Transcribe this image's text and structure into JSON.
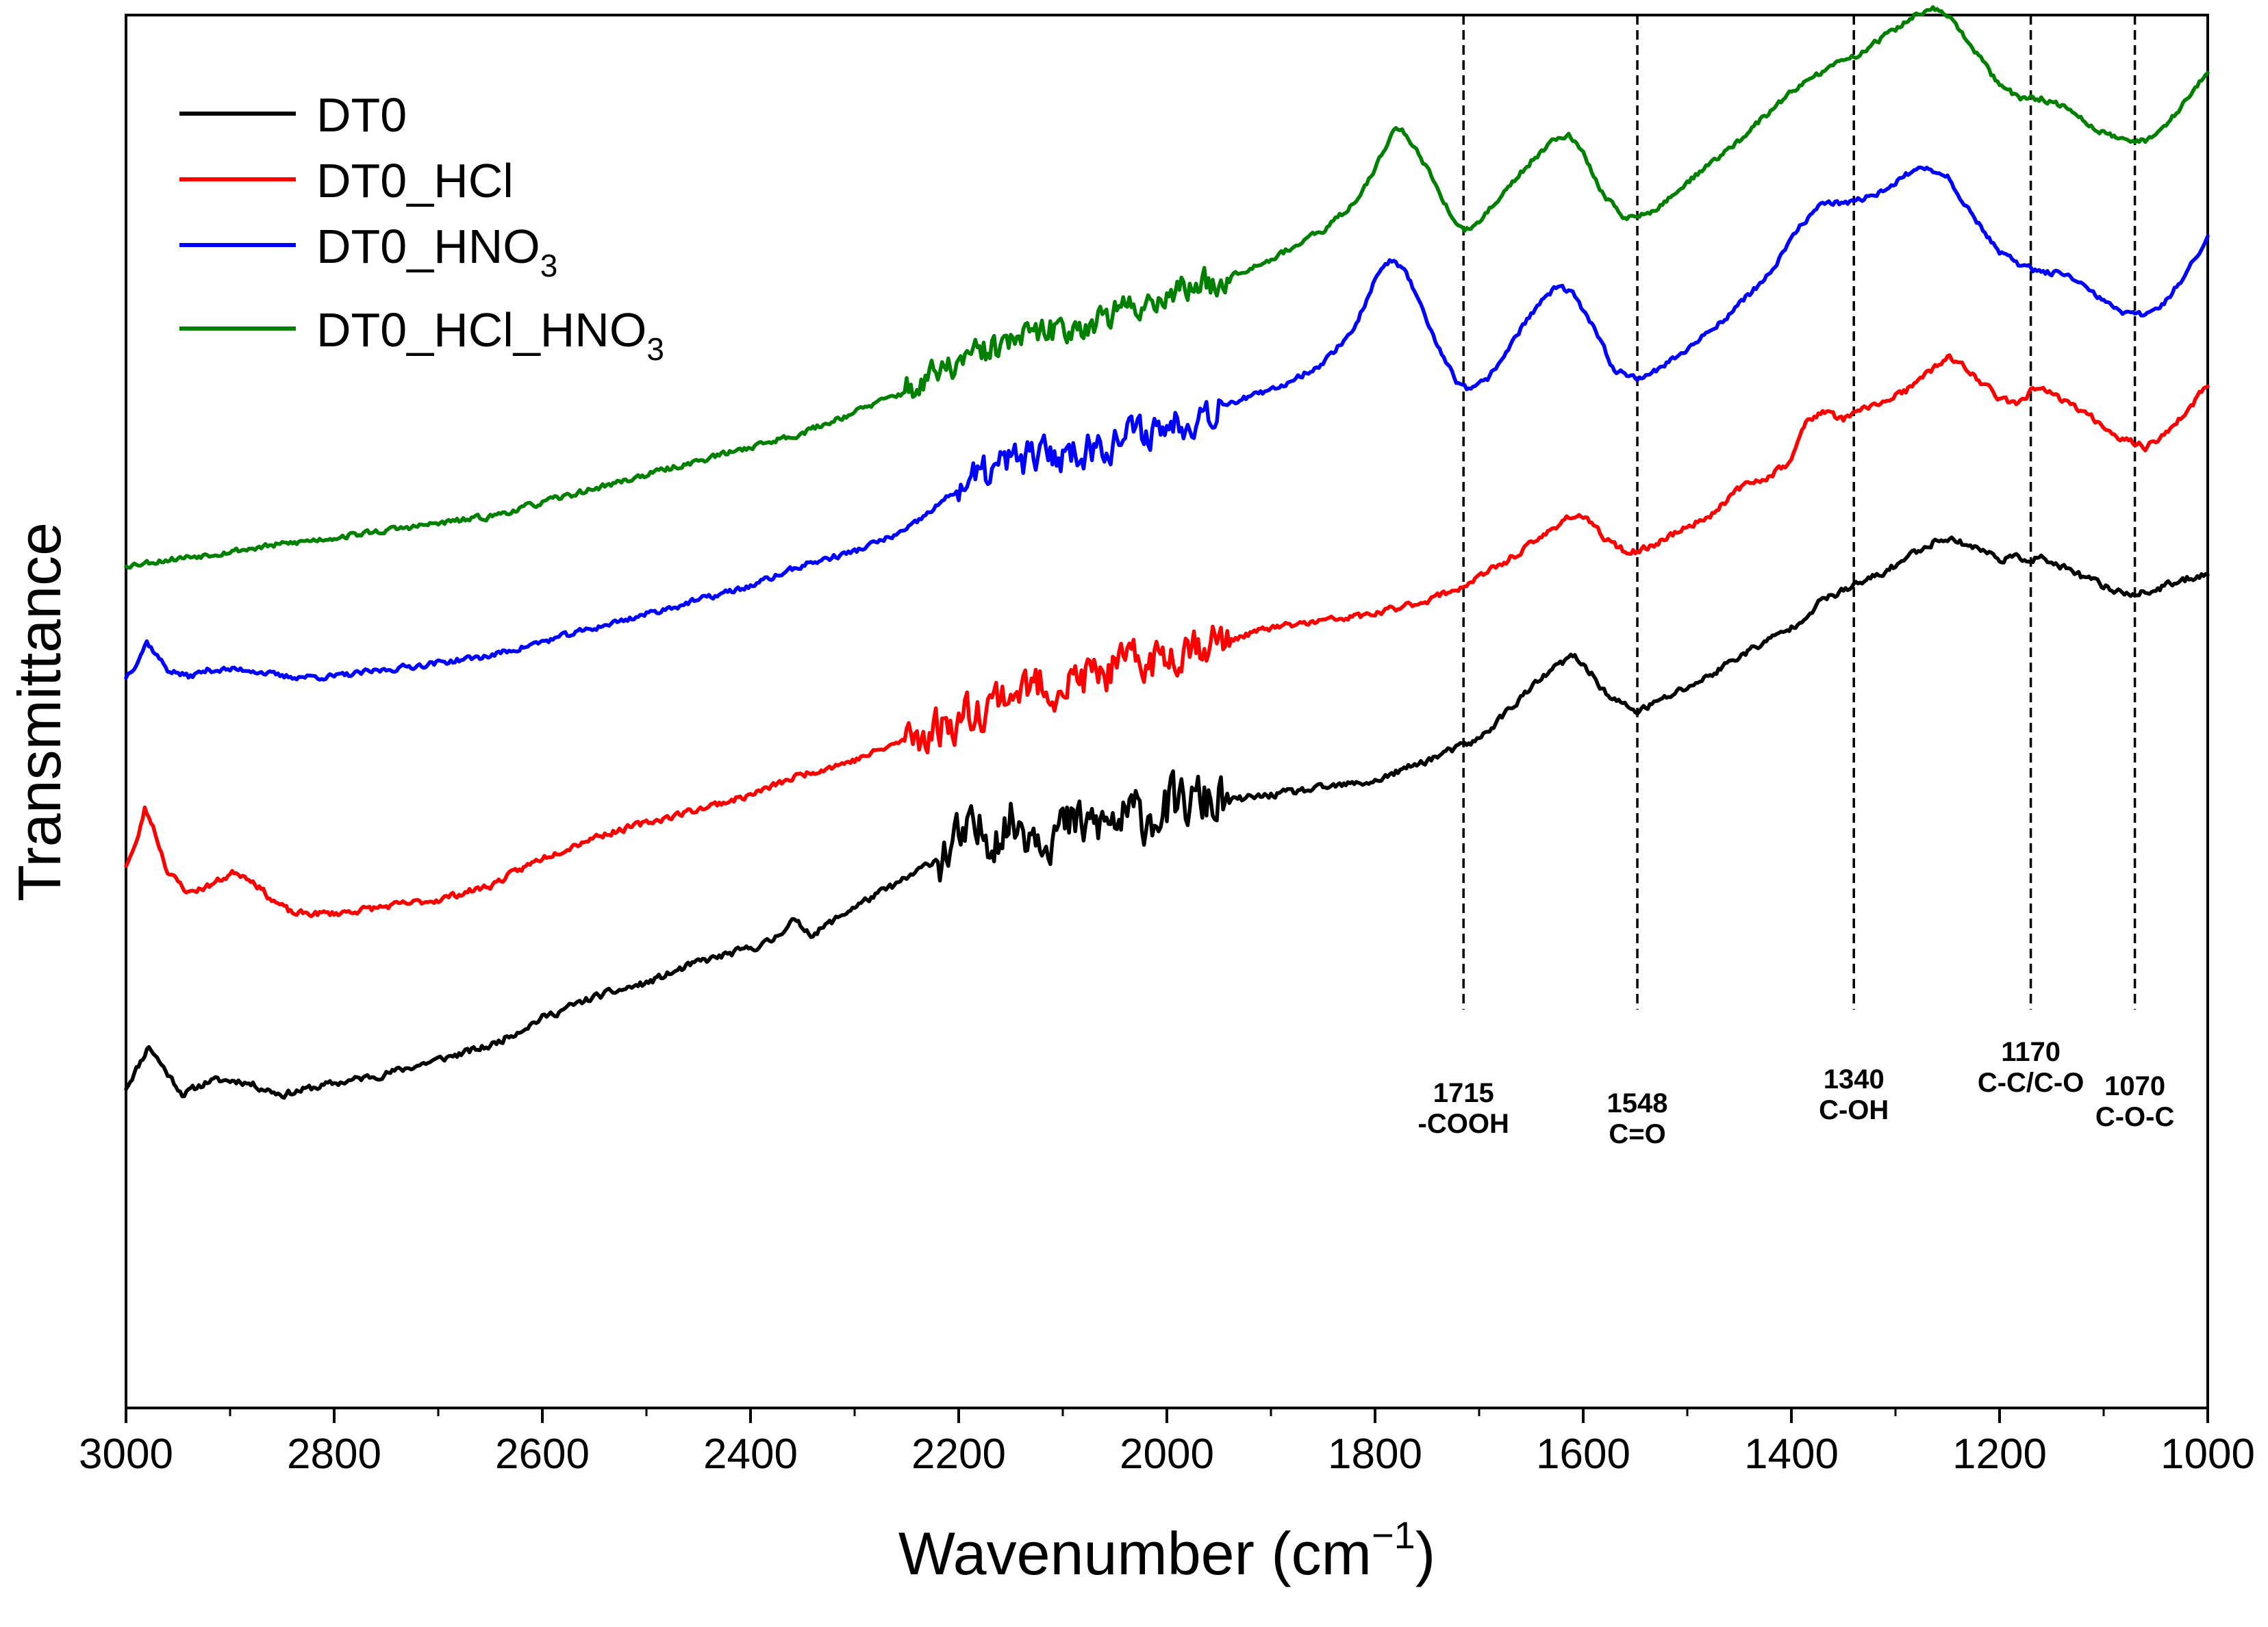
{
  "chart_data": {
    "type": "line",
    "title": "",
    "xlabel": "Wavenumber (cm",
    "xlabel_sup": "−1",
    "xlabel_close": ")",
    "ylabel": "Transmittance",
    "xlim": [
      3000,
      1000
    ],
    "x_reversed": true,
    "ylim": [
      0,
      100
    ],
    "y_ticks_shown": false,
    "grid": false,
    "legend_position": "top-left",
    "x_ticks": [
      3000,
      2800,
      2600,
      2400,
      2200,
      2000,
      1800,
      1600,
      1400,
      1200,
      1000
    ],
    "x_tick_labels": [
      "3000",
      "2800",
      "2600",
      "2400",
      "2200",
      "2000",
      "1800",
      "1600",
      "1400",
      "1200",
      "1000"
    ],
    "x_minor_ticks": [
      2900,
      2700,
      2500,
      2300,
      2100,
      1900,
      1700,
      1500,
      1300,
      1100
    ],
    "series": [
      {
        "name": "DT0",
        "legend_base": "DT0",
        "legend_sub": "",
        "legend_suffix": "",
        "color": "#000000",
        "noise": 2.2,
        "noise_seed": 11,
        "points": [
          [
            3000,
            23
          ],
          [
            2985,
            25
          ],
          [
            2978,
            26
          ],
          [
            2960,
            24
          ],
          [
            2945,
            22.5
          ],
          [
            2920,
            23.5
          ],
          [
            2890,
            23.5
          ],
          [
            2850,
            22.5
          ],
          [
            2820,
            23
          ],
          [
            2750,
            24
          ],
          [
            2700,
            25
          ],
          [
            2650,
            26
          ],
          [
            2600,
            28
          ],
          [
            2550,
            29.5
          ],
          [
            2500,
            30.5
          ],
          [
            2450,
            32
          ],
          [
            2400,
            33
          ],
          [
            2380,
            33.5
          ],
          [
            2360,
            35
          ],
          [
            2340,
            34
          ],
          [
            2300,
            36
          ],
          [
            2250,
            38
          ],
          [
            2200,
            40.5
          ],
          [
            2150,
            42
          ],
          [
            2100,
            41.5
          ],
          [
            2050,
            42
          ],
          [
            2000,
            43
          ],
          [
            1970,
            43.5
          ],
          [
            1950,
            43.5
          ],
          [
            1900,
            44
          ],
          [
            1850,
            44.5
          ],
          [
            1800,
            45
          ],
          [
            1750,
            46.5
          ],
          [
            1700,
            48
          ],
          [
            1660,
            51
          ],
          [
            1630,
            53
          ],
          [
            1610,
            54
          ],
          [
            1595,
            53
          ],
          [
            1575,
            51
          ],
          [
            1548,
            50
          ],
          [
            1520,
            51
          ],
          [
            1480,
            52.5
          ],
          [
            1450,
            54
          ],
          [
            1400,
            56
          ],
          [
            1370,
            58
          ],
          [
            1340,
            59
          ],
          [
            1310,
            60
          ],
          [
            1280,
            61.5
          ],
          [
            1255,
            62.5
          ],
          [
            1230,
            62
          ],
          [
            1200,
            61
          ],
          [
            1180,
            61
          ],
          [
            1160,
            61
          ],
          [
            1130,
            60
          ],
          [
            1100,
            59
          ],
          [
            1080,
            58.5
          ],
          [
            1060,
            58.5
          ],
          [
            1040,
            59
          ],
          [
            1020,
            59.5
          ],
          [
            1000,
            60
          ]
        ],
        "noise_zones": [
          [
            2220,
            1940,
            9
          ]
        ]
      },
      {
        "name": "DT0_HCl",
        "legend_base": "DT0_HCl",
        "legend_sub": "",
        "legend_suffix": "",
        "color": "#ff0000",
        "noise": 2.0,
        "noise_seed": 23,
        "points": [
          [
            3000,
            39
          ],
          [
            2990,
            40.5
          ],
          [
            2982,
            43
          ],
          [
            2975,
            42
          ],
          [
            2960,
            38.5
          ],
          [
            2940,
            37
          ],
          [
            2920,
            37.5
          ],
          [
            2895,
            38.5
          ],
          [
            2880,
            38
          ],
          [
            2860,
            36.5
          ],
          [
            2840,
            35.5
          ],
          [
            2800,
            35.5
          ],
          [
            2750,
            36
          ],
          [
            2700,
            36.5
          ],
          [
            2650,
            37.5
          ],
          [
            2600,
            39.5
          ],
          [
            2550,
            41
          ],
          [
            2500,
            42
          ],
          [
            2450,
            43
          ],
          [
            2400,
            44
          ],
          [
            2350,
            45.5
          ],
          [
            2300,
            46.5
          ],
          [
            2250,
            48
          ],
          [
            2200,
            49.5
          ],
          [
            2150,
            51.5
          ],
          [
            2100,
            52
          ],
          [
            2050,
            53
          ],
          [
            2000,
            54
          ],
          [
            1980,
            55
          ],
          [
            1950,
            55
          ],
          [
            1900,
            56
          ],
          [
            1850,
            56.5
          ],
          [
            1800,
            57
          ],
          [
            1750,
            58
          ],
          [
            1715,
            59
          ],
          [
            1680,
            60.5
          ],
          [
            1640,
            62.5
          ],
          [
            1615,
            64
          ],
          [
            1600,
            64
          ],
          [
            1580,
            62.5
          ],
          [
            1560,
            61.5
          ],
          [
            1545,
            61.5
          ],
          [
            1520,
            62.5
          ],
          [
            1480,
            64
          ],
          [
            1450,
            66
          ],
          [
            1420,
            67
          ],
          [
            1400,
            68
          ],
          [
            1385,
            71
          ],
          [
            1370,
            71.5
          ],
          [
            1350,
            71
          ],
          [
            1320,
            72
          ],
          [
            1290,
            73
          ],
          [
            1265,
            74.5
          ],
          [
            1250,
            75.5
          ],
          [
            1230,
            74.5
          ],
          [
            1200,
            72.5
          ],
          [
            1185,
            72
          ],
          [
            1170,
            73
          ],
          [
            1155,
            73
          ],
          [
            1130,
            72
          ],
          [
            1100,
            70.5
          ],
          [
            1080,
            69.5
          ],
          [
            1060,
            69
          ],
          [
            1040,
            70
          ],
          [
            1020,
            71.5
          ],
          [
            1000,
            73.5
          ]
        ],
        "noise_zones": [
          [
            2250,
            1940,
            7
          ]
        ]
      },
      {
        "name": "DT0_HNO3",
        "legend_base": "DT0_HNO",
        "legend_sub": "3",
        "legend_suffix": "",
        "color": "#0000ff",
        "noise": 1.8,
        "noise_seed": 37,
        "points": [
          [
            3000,
            52.5
          ],
          [
            2990,
            53.5
          ],
          [
            2980,
            55
          ],
          [
            2970,
            54
          ],
          [
            2960,
            53
          ],
          [
            2940,
            52.5
          ],
          [
            2920,
            53
          ],
          [
            2880,
            53
          ],
          [
            2850,
            52.5
          ],
          [
            2800,
            52.5
          ],
          [
            2750,
            53
          ],
          [
            2700,
            53.5
          ],
          [
            2650,
            54
          ],
          [
            2600,
            55
          ],
          [
            2550,
            56
          ],
          [
            2500,
            57
          ],
          [
            2450,
            58
          ],
          [
            2400,
            59
          ],
          [
            2350,
            60.5
          ],
          [
            2300,
            61.5
          ],
          [
            2250,
            63
          ],
          [
            2200,
            66
          ],
          [
            2150,
            68
          ],
          [
            2100,
            68.5
          ],
          [
            2050,
            69.5
          ],
          [
            2000,
            70.5
          ],
          [
            1950,
            72
          ],
          [
            1900,
            73
          ],
          [
            1850,
            75
          ],
          [
            1820,
            77.5
          ],
          [
            1800,
            81
          ],
          [
            1785,
            82.5
          ],
          [
            1770,
            81.5
          ],
          [
            1745,
            77
          ],
          [
            1720,
            73.5
          ],
          [
            1708,
            73
          ],
          [
            1690,
            74
          ],
          [
            1660,
            77.5
          ],
          [
            1640,
            79.5
          ],
          [
            1625,
            80.5
          ],
          [
            1610,
            80
          ],
          [
            1590,
            77.5
          ],
          [
            1570,
            74.5
          ],
          [
            1548,
            74
          ],
          [
            1530,
            74.5
          ],
          [
            1500,
            76
          ],
          [
            1460,
            78.5
          ],
          [
            1420,
            81.5
          ],
          [
            1390,
            85
          ],
          [
            1370,
            86.5
          ],
          [
            1340,
            86.5
          ],
          [
            1310,
            87.5
          ],
          [
            1290,
            88.5
          ],
          [
            1270,
            89
          ],
          [
            1250,
            88.5
          ],
          [
            1230,
            86
          ],
          [
            1200,
            83
          ],
          [
            1180,
            82
          ],
          [
            1160,
            81.5
          ],
          [
            1140,
            81.5
          ],
          [
            1120,
            80.5
          ],
          [
            1100,
            79.5
          ],
          [
            1080,
            78.5
          ],
          [
            1060,
            78.5
          ],
          [
            1040,
            79.5
          ],
          [
            1020,
            81.5
          ],
          [
            1000,
            84
          ]
        ],
        "noise_zones": [
          [
            2200,
            1950,
            6
          ]
        ]
      },
      {
        "name": "DT0_HCl_HNO3",
        "legend_base": "DT0_HCl_HNO",
        "legend_sub": "3",
        "legend_suffix": "",
        "color": "#008000",
        "noise": 1.8,
        "noise_seed": 53,
        "points": [
          [
            3000,
            60.5
          ],
          [
            2950,
            61
          ],
          [
            2900,
            61.5
          ],
          [
            2850,
            62
          ],
          [
            2800,
            62.5
          ],
          [
            2750,
            63
          ],
          [
            2700,
            63.5
          ],
          [
            2650,
            64
          ],
          [
            2600,
            65
          ],
          [
            2550,
            66
          ],
          [
            2500,
            67
          ],
          [
            2450,
            68
          ],
          [
            2400,
            69
          ],
          [
            2350,
            70
          ],
          [
            2300,
            71.5
          ],
          [
            2250,
            73
          ],
          [
            2200,
            75
          ],
          [
            2150,
            76.5
          ],
          [
            2100,
            77.5
          ],
          [
            2050,
            78.5
          ],
          [
            2000,
            80
          ],
          [
            1950,
            81
          ],
          [
            1900,
            82.5
          ],
          [
            1850,
            84.5
          ],
          [
            1820,
            86.5
          ],
          [
            1800,
            89
          ],
          [
            1780,
            92
          ],
          [
            1770,
            91.5
          ],
          [
            1750,
            89
          ],
          [
            1730,
            86
          ],
          [
            1715,
            84.5
          ],
          [
            1700,
            85
          ],
          [
            1680,
            87
          ],
          [
            1650,
            89.5
          ],
          [
            1630,
            91
          ],
          [
            1615,
            91.5
          ],
          [
            1600,
            90
          ],
          [
            1580,
            87
          ],
          [
            1560,
            85.5
          ],
          [
            1548,
            85.5
          ],
          [
            1530,
            86
          ],
          [
            1500,
            88
          ],
          [
            1450,
            91
          ],
          [
            1400,
            94.5
          ],
          [
            1370,
            96
          ],
          [
            1340,
            97
          ],
          [
            1300,
            99
          ],
          [
            1280,
            100
          ],
          [
            1265,
            100.5
          ],
          [
            1250,
            100
          ],
          [
            1230,
            98
          ],
          [
            1200,
            95
          ],
          [
            1180,
            94
          ],
          [
            1160,
            94
          ],
          [
            1140,
            93.5
          ],
          [
            1120,
            92.5
          ],
          [
            1100,
            91.5
          ],
          [
            1080,
            91
          ],
          [
            1060,
            91
          ],
          [
            1040,
            92
          ],
          [
            1020,
            94
          ],
          [
            1000,
            96
          ]
        ],
        "noise_zones": [
          [
            2250,
            1940,
            5
          ]
        ]
      }
    ],
    "reference_lines": [
      {
        "x": 1715,
        "value": "1715",
        "group": "-COOH"
      },
      {
        "x": 1548,
        "value": "1548",
        "group": "C=O"
      },
      {
        "x": 1340,
        "value": "1340",
        "group": "C-OH"
      },
      {
        "x": 1170,
        "value": "1170",
        "group": "C-C/C-O"
      },
      {
        "x": 1070,
        "value": "1070",
        "group": "C-O-C"
      }
    ]
  }
}
